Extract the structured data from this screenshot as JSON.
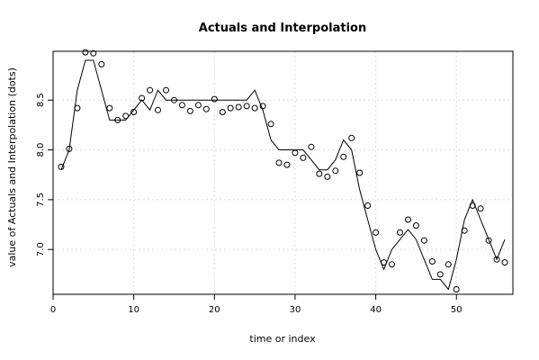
{
  "chart_data": {
    "type": "line",
    "title": "Actuals and Interpolation",
    "xlabel": "time or index",
    "ylabel": "value of Actuals and Interpolation (dots)",
    "xlim": [
      0,
      57
    ],
    "ylim": [
      6.55,
      8.99
    ],
    "xticks": [
      0,
      10,
      20,
      30,
      40,
      50
    ],
    "yticks": [
      7.0,
      7.5,
      8.0,
      8.5
    ],
    "ytick_labels": [
      "7.0",
      "7.5",
      "8.0",
      "8.5"
    ],
    "grid": true,
    "series": [
      {
        "style": "points",
        "x": [
          1,
          2,
          3,
          4,
          5,
          6,
          7,
          8,
          9,
          10,
          11,
          12,
          13,
          14,
          15,
          16,
          17,
          18,
          19,
          20,
          21,
          22,
          23,
          24,
          25,
          26,
          27,
          28,
          29,
          30,
          31,
          32,
          33,
          34,
          35,
          36,
          37,
          38,
          39,
          40,
          41,
          42,
          43,
          44,
          45,
          46,
          47,
          48,
          49,
          50,
          51,
          52,
          53,
          54,
          55,
          56
        ],
        "values": [
          7.83,
          8.01,
          8.42,
          8.98,
          8.97,
          8.86,
          8.42,
          8.3,
          8.34,
          8.38,
          8.52,
          8.6,
          8.4,
          8.6,
          8.5,
          8.45,
          8.39,
          8.45,
          8.41,
          8.51,
          8.38,
          8.42,
          8.43,
          8.44,
          8.42,
          8.44,
          8.26,
          7.87,
          7.85,
          7.97,
          7.92,
          8.03,
          7.76,
          7.73,
          7.79,
          7.93,
          8.12,
          7.77,
          7.44,
          7.17,
          6.87,
          6.85,
          7.17,
          7.3,
          7.24,
          7.09,
          6.88,
          6.75,
          6.85,
          6.6,
          7.19,
          7.44,
          7.41,
          7.09,
          6.9,
          6.87
        ]
      },
      {
        "style": "line",
        "x": [
          1,
          2,
          3,
          4,
          5,
          6,
          7,
          8,
          9,
          10,
          11,
          12,
          13,
          14,
          15,
          16,
          17,
          18,
          19,
          20,
          21,
          22,
          23,
          24,
          25,
          26,
          27,
          28,
          29,
          30,
          31,
          32,
          33,
          34,
          35,
          36,
          37,
          38,
          39,
          40,
          41,
          42,
          43,
          44,
          45,
          46,
          47,
          48,
          49,
          50,
          51,
          52,
          53,
          54,
          55,
          56
        ],
        "values": [
          7.8,
          8.0,
          8.6,
          8.9,
          8.9,
          8.6,
          8.3,
          8.3,
          8.3,
          8.4,
          8.5,
          8.4,
          8.6,
          8.5,
          8.5,
          8.5,
          8.5,
          8.5,
          8.5,
          8.5,
          8.5,
          8.5,
          8.5,
          8.5,
          8.6,
          8.4,
          8.1,
          8.0,
          8.0,
          8.0,
          8.0,
          7.9,
          7.8,
          7.8,
          7.9,
          8.1,
          8.0,
          7.6,
          7.3,
          7.0,
          6.8,
          7.0,
          7.1,
          7.2,
          7.1,
          6.9,
          6.7,
          6.7,
          6.6,
          6.9,
          7.3,
          7.5,
          7.3,
          7.1,
          6.9,
          7.1
        ]
      }
    ]
  }
}
